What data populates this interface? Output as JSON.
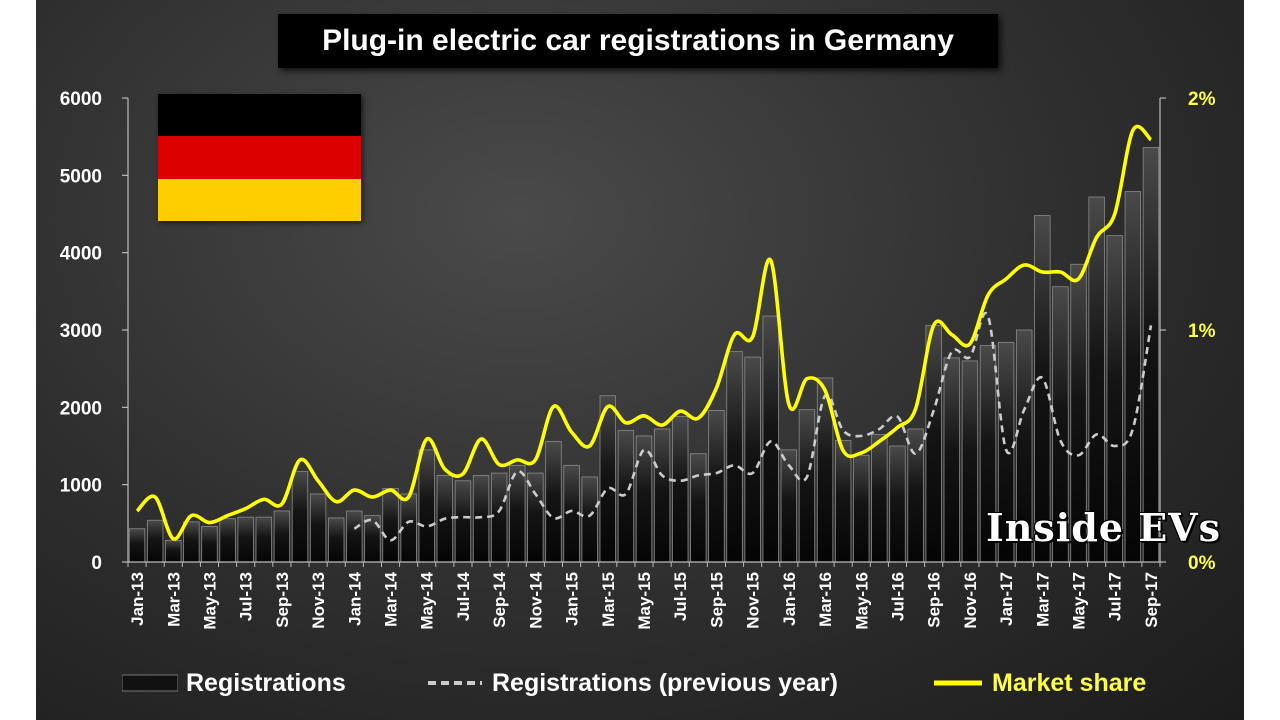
{
  "chart_data": {
    "type": "bar",
    "title": "Plug-in electric car registrations in Germany",
    "watermark": "Inside EVs",
    "categories": [
      "Jan-13",
      "Feb-13",
      "Mar-13",
      "Apr-13",
      "May-13",
      "Jun-13",
      "Jul-13",
      "Aug-13",
      "Sep-13",
      "Oct-13",
      "Nov-13",
      "Dec-13",
      "Jan-14",
      "Feb-14",
      "Mar-14",
      "Apr-14",
      "May-14",
      "Jun-14",
      "Jul-14",
      "Aug-14",
      "Sep-14",
      "Oct-14",
      "Nov-14",
      "Dec-14",
      "Jan-15",
      "Feb-15",
      "Mar-15",
      "Apr-15",
      "May-15",
      "Jun-15",
      "Jul-15",
      "Aug-15",
      "Sep-15",
      "Oct-15",
      "Nov-15",
      "Dec-15",
      "Jan-16",
      "Feb-16",
      "Mar-16",
      "Apr-16",
      "May-16",
      "Jun-16",
      "Jul-16",
      "Aug-16",
      "Sep-16",
      "Oct-16",
      "Nov-16",
      "Dec-16",
      "Jan-17",
      "Feb-17",
      "Mar-17",
      "Apr-17",
      "May-17",
      "Jun-17",
      "Jul-17",
      "Aug-17",
      "Sep-17"
    ],
    "x_tick_labels": [
      "Jan-13",
      "Mar-13",
      "May-13",
      "Jul-13",
      "Sep-13",
      "Nov-13",
      "Jan-14",
      "Mar-14",
      "May-14",
      "Jul-14",
      "Sep-14",
      "Nov-14",
      "Jan-15",
      "Mar-15",
      "May-15",
      "Jul-15",
      "Sep-15",
      "Nov-15",
      "Jan-16",
      "Mar-16",
      "May-16",
      "Jul-16",
      "Sep-16",
      "Nov-16",
      "Jan-17",
      "Mar-17",
      "May-17",
      "Jul-17",
      "Sep-17"
    ],
    "y_left": {
      "ylim": [
        0,
        6000
      ],
      "ticks": [
        0,
        1000,
        2000,
        3000,
        4000,
        5000,
        6000
      ],
      "tick_labels": [
        "0",
        "1000",
        "2000",
        "3000",
        "4000",
        "5000",
        "6000"
      ]
    },
    "y_right": {
      "ylim": [
        0,
        2
      ],
      "ticks": [
        0,
        1,
        2
      ],
      "tick_labels": [
        "0%",
        "1%",
        "2%"
      ]
    },
    "series": [
      {
        "name": "Registrations",
        "kind": "bar",
        "axis": "left",
        "color": "#111111",
        "values": [
          430,
          540,
          280,
          520,
          460,
          560,
          580,
          580,
          660,
          1170,
          880,
          570,
          660,
          600,
          950,
          880,
          1450,
          1120,
          1050,
          1120,
          1150,
          1250,
          1150,
          1560,
          1250,
          1100,
          2150,
          1700,
          1630,
          1720,
          1880,
          1400,
          1960,
          2720,
          2650,
          3180,
          1450,
          1970,
          2380,
          1570,
          1380,
          1650,
          1500,
          1720,
          3060,
          2640,
          2600,
          2800,
          2840,
          3000,
          4480,
          3560,
          3850,
          4720,
          4220,
          4790,
          5360
        ]
      },
      {
        "name": "Registrations (previous year)",
        "kind": "line-dashed",
        "axis": "left",
        "color": "#cccccc",
        "values": [
          null,
          null,
          null,
          null,
          null,
          null,
          null,
          null,
          null,
          null,
          null,
          null,
          430,
          540,
          280,
          520,
          460,
          560,
          580,
          580,
          660,
          1170,
          880,
          570,
          660,
          600,
          950,
          880,
          1450,
          1120,
          1050,
          1120,
          1150,
          1250,
          1150,
          1560,
          1250,
          1100,
          2150,
          1700,
          1630,
          1720,
          1880,
          1400,
          1960,
          2720,
          2650,
          3180,
          1450,
          1970,
          2380,
          1570,
          1380,
          1650,
          1500,
          1720,
          3060
        ]
      },
      {
        "name": "Market share",
        "kind": "line",
        "axis": "right",
        "color": "#ffff00",
        "unit": "%",
        "values": [
          0.22,
          0.28,
          0.1,
          0.2,
          0.17,
          0.2,
          0.23,
          0.27,
          0.25,
          0.44,
          0.35,
          0.26,
          0.31,
          0.28,
          0.31,
          0.28,
          0.53,
          0.4,
          0.38,
          0.53,
          0.42,
          0.44,
          0.44,
          0.67,
          0.56,
          0.5,
          0.67,
          0.6,
          0.63,
          0.59,
          0.65,
          0.62,
          0.75,
          0.98,
          0.97,
          1.3,
          0.68,
          0.79,
          0.74,
          0.48,
          0.47,
          0.52,
          0.58,
          0.66,
          1.02,
          0.98,
          0.94,
          1.15,
          1.22,
          1.28,
          1.25,
          1.25,
          1.22,
          1.4,
          1.5,
          1.86,
          1.82
        ]
      }
    ],
    "legend_position": "bottom",
    "grid": false
  }
}
